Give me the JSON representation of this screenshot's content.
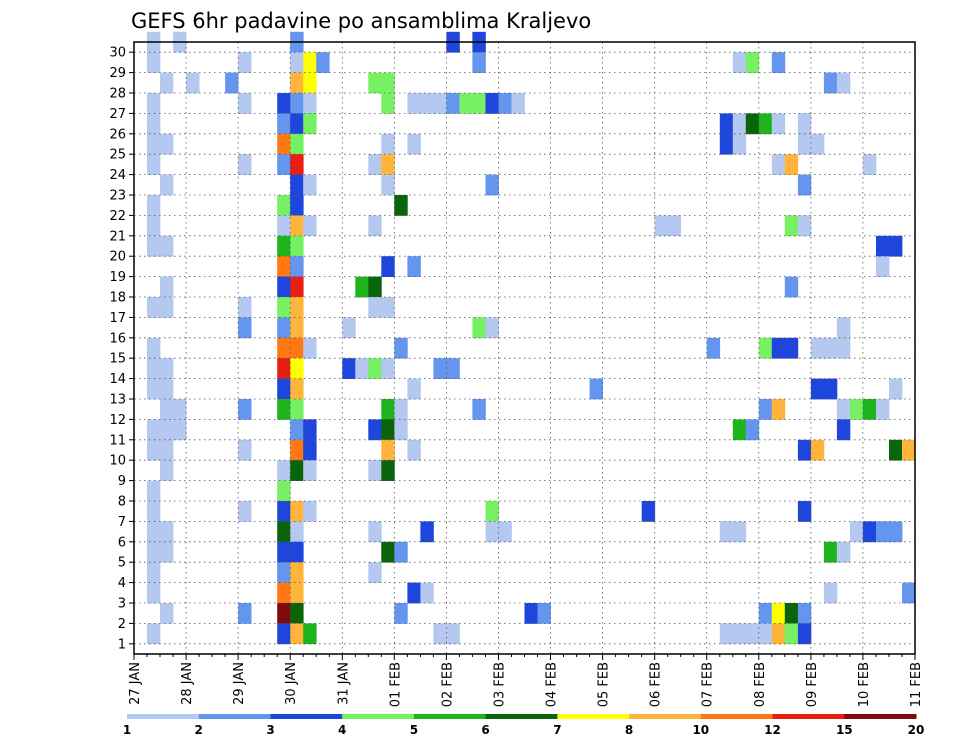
{
  "chart_data": {
    "type": "heatmap",
    "title": "GEFS 6hr padavine po ansamblima Kraljevo",
    "y_ticks": [
      "1",
      "2",
      "3",
      "4",
      "5",
      "6",
      "7",
      "8",
      "9",
      "10",
      "11",
      "12",
      "13",
      "14",
      "15",
      "16",
      "17",
      "18",
      "19",
      "20",
      "21",
      "22",
      "23",
      "24",
      "25",
      "26",
      "27",
      "28",
      "29",
      "30"
    ],
    "x_ticks": [
      "27 JAN",
      "28 JAN",
      "29 JAN",
      "30 JAN",
      "31 JAN",
      "01 FEB",
      "02 FEB",
      "03 FEB",
      "04 FEB",
      "05 FEB",
      "06 FEB",
      "07 FEB",
      "08 FEB",
      "09 FEB",
      "10 FEB",
      "11 FEB"
    ],
    "grid": true,
    "colorbar": {
      "labels": [
        "1",
        "2",
        "3",
        "4",
        "5",
        "6",
        "7",
        "8",
        "10",
        "12",
        "15",
        "20"
      ],
      "colors": [
        "#b4c8f0",
        "#6496f0",
        "#1e46dc",
        "#78f064",
        "#1eb41e",
        "#0a640a",
        "#ffff00",
        "#ffb43c",
        "#ff7814",
        "#e61e14",
        "#820a0a"
      ]
    },
    "notes": "x = ensemble member time in 6hr steps (4 per day) from 27 JAN; y = member 1-30; v = precipitation class index into colorbar.colors",
    "points": [
      {
        "x": 1,
        "y": 30,
        "v": 0
      },
      {
        "x": 3,
        "y": 30,
        "v": 0
      },
      {
        "x": 12,
        "y": 30,
        "v": 1
      },
      {
        "x": 24,
        "y": 30,
        "v": 2
      },
      {
        "x": 26,
        "y": 30,
        "v": 2
      },
      {
        "x": 1,
        "y": 29,
        "v": 0
      },
      {
        "x": 8,
        "y": 29,
        "v": 0
      },
      {
        "x": 12,
        "y": 29,
        "v": 0
      },
      {
        "x": 13,
        "y": 29,
        "v": 6
      },
      {
        "x": 14,
        "y": 29,
        "v": 1
      },
      {
        "x": 26,
        "y": 29,
        "v": 1
      },
      {
        "x": 46,
        "y": 29,
        "v": 0
      },
      {
        "x": 47,
        "y": 29,
        "v": 3
      },
      {
        "x": 49,
        "y": 29,
        "v": 1
      },
      {
        "x": 2,
        "y": 28,
        "v": 0
      },
      {
        "x": 4,
        "y": 28,
        "v": 0
      },
      {
        "x": 7,
        "y": 28,
        "v": 1
      },
      {
        "x": 12,
        "y": 28,
        "v": 7
      },
      {
        "x": 13,
        "y": 28,
        "v": 6
      },
      {
        "x": 18,
        "y": 28,
        "v": 3
      },
      {
        "x": 19,
        "y": 28,
        "v": 3
      },
      {
        "x": 53,
        "y": 28,
        "v": 1
      },
      {
        "x": 54,
        "y": 28,
        "v": 0
      },
      {
        "x": 1,
        "y": 27,
        "v": 0
      },
      {
        "x": 8,
        "y": 27,
        "v": 0
      },
      {
        "x": 11,
        "y": 27,
        "v": 2
      },
      {
        "x": 12,
        "y": 27,
        "v": 1
      },
      {
        "x": 13,
        "y": 27,
        "v": 0
      },
      {
        "x": 19,
        "y": 27,
        "v": 3
      },
      {
        "x": 21,
        "y": 27,
        "v": 0
      },
      {
        "x": 22,
        "y": 27,
        "v": 0
      },
      {
        "x": 23,
        "y": 27,
        "v": 0
      },
      {
        "x": 24,
        "y": 27,
        "v": 1
      },
      {
        "x": 25,
        "y": 27,
        "v": 3
      },
      {
        "x": 26,
        "y": 27,
        "v": 3
      },
      {
        "x": 27,
        "y": 27,
        "v": 2
      },
      {
        "x": 28,
        "y": 27,
        "v": 1
      },
      {
        "x": 29,
        "y": 27,
        "v": 0
      },
      {
        "x": 1,
        "y": 26,
        "v": 0
      },
      {
        "x": 11,
        "y": 26,
        "v": 1
      },
      {
        "x": 12,
        "y": 26,
        "v": 2
      },
      {
        "x": 13,
        "y": 26,
        "v": 3
      },
      {
        "x": 45,
        "y": 26,
        "v": 2
      },
      {
        "x": 46,
        "y": 26,
        "v": 0
      },
      {
        "x": 47,
        "y": 26,
        "v": 5
      },
      {
        "x": 48,
        "y": 26,
        "v": 4
      },
      {
        "x": 49,
        "y": 26,
        "v": 0
      },
      {
        "x": 51,
        "y": 26,
        "v": 0
      },
      {
        "x": 1,
        "y": 25,
        "v": 0
      },
      {
        "x": 2,
        "y": 25,
        "v": 0
      },
      {
        "x": 11,
        "y": 25,
        "v": 8
      },
      {
        "x": 12,
        "y": 25,
        "v": 3
      },
      {
        "x": 19,
        "y": 25,
        "v": 0
      },
      {
        "x": 21,
        "y": 25,
        "v": 0
      },
      {
        "x": 45,
        "y": 25,
        "v": 2
      },
      {
        "x": 46,
        "y": 25,
        "v": 0
      },
      {
        "x": 51,
        "y": 25,
        "v": 0
      },
      {
        "x": 52,
        "y": 25,
        "v": 0
      },
      {
        "x": 1,
        "y": 24,
        "v": 0
      },
      {
        "x": 8,
        "y": 24,
        "v": 0
      },
      {
        "x": 11,
        "y": 24,
        "v": 1
      },
      {
        "x": 12,
        "y": 24,
        "v": 9
      },
      {
        "x": 18,
        "y": 24,
        "v": 0
      },
      {
        "x": 19,
        "y": 24,
        "v": 7
      },
      {
        "x": 49,
        "y": 24,
        "v": 0
      },
      {
        "x": 50,
        "y": 24,
        "v": 7
      },
      {
        "x": 56,
        "y": 24,
        "v": 0
      },
      {
        "x": 2,
        "y": 23,
        "v": 0
      },
      {
        "x": 12,
        "y": 23,
        "v": 2
      },
      {
        "x": 13,
        "y": 23,
        "v": 0
      },
      {
        "x": 19,
        "y": 23,
        "v": 0
      },
      {
        "x": 27,
        "y": 23,
        "v": 1
      },
      {
        "x": 51,
        "y": 23,
        "v": 1
      },
      {
        "x": 1,
        "y": 22,
        "v": 0
      },
      {
        "x": 11,
        "y": 22,
        "v": 3
      },
      {
        "x": 12,
        "y": 22,
        "v": 2
      },
      {
        "x": 20,
        "y": 22,
        "v": 5
      },
      {
        "x": 1,
        "y": 21,
        "v": 0
      },
      {
        "x": 11,
        "y": 21,
        "v": 0
      },
      {
        "x": 12,
        "y": 21,
        "v": 7
      },
      {
        "x": 13,
        "y": 21,
        "v": 0
      },
      {
        "x": 18,
        "y": 21,
        "v": 0
      },
      {
        "x": 40,
        "y": 21,
        "v": 0
      },
      {
        "x": 41,
        "y": 21,
        "v": 0
      },
      {
        "x": 50,
        "y": 21,
        "v": 3
      },
      {
        "x": 51,
        "y": 21,
        "v": 0
      },
      {
        "x": 1,
        "y": 20,
        "v": 0
      },
      {
        "x": 2,
        "y": 20,
        "v": 0
      },
      {
        "x": 11,
        "y": 20,
        "v": 4
      },
      {
        "x": 12,
        "y": 20,
        "v": 3
      },
      {
        "x": 57,
        "y": 20,
        "v": 2
      },
      {
        "x": 58,
        "y": 20,
        "v": 2
      },
      {
        "x": 11,
        "y": 19,
        "v": 8
      },
      {
        "x": 12,
        "y": 19,
        "v": 1
      },
      {
        "x": 19,
        "y": 19,
        "v": 2
      },
      {
        "x": 21,
        "y": 19,
        "v": 1
      },
      {
        "x": 57,
        "y": 19,
        "v": 0
      },
      {
        "x": 2,
        "y": 18,
        "v": 0
      },
      {
        "x": 11,
        "y": 18,
        "v": 2
      },
      {
        "x": 12,
        "y": 18,
        "v": 9
      },
      {
        "x": 17,
        "y": 18,
        "v": 4
      },
      {
        "x": 18,
        "y": 18,
        "v": 5
      },
      {
        "x": 50,
        "y": 18,
        "v": 1
      },
      {
        "x": 1,
        "y": 17,
        "v": 0
      },
      {
        "x": 2,
        "y": 17,
        "v": 0
      },
      {
        "x": 8,
        "y": 17,
        "v": 0
      },
      {
        "x": 11,
        "y": 17,
        "v": 3
      },
      {
        "x": 12,
        "y": 17,
        "v": 7
      },
      {
        "x": 18,
        "y": 17,
        "v": 0
      },
      {
        "x": 19,
        "y": 17,
        "v": 0
      },
      {
        "x": 8,
        "y": 16,
        "v": 1
      },
      {
        "x": 11,
        "y": 16,
        "v": 1
      },
      {
        "x": 12,
        "y": 16,
        "v": 7
      },
      {
        "x": 16,
        "y": 16,
        "v": 0
      },
      {
        "x": 26,
        "y": 16,
        "v": 3
      },
      {
        "x": 27,
        "y": 16,
        "v": 0
      },
      {
        "x": 54,
        "y": 16,
        "v": 0
      },
      {
        "x": 1,
        "y": 15,
        "v": 0
      },
      {
        "x": 11,
        "y": 15,
        "v": 8
      },
      {
        "x": 12,
        "y": 15,
        "v": 8
      },
      {
        "x": 13,
        "y": 15,
        "v": 0
      },
      {
        "x": 20,
        "y": 15,
        "v": 1
      },
      {
        "x": 44,
        "y": 15,
        "v": 1
      },
      {
        "x": 48,
        "y": 15,
        "v": 3
      },
      {
        "x": 49,
        "y": 15,
        "v": 2
      },
      {
        "x": 50,
        "y": 15,
        "v": 2
      },
      {
        "x": 52,
        "y": 15,
        "v": 0
      },
      {
        "x": 53,
        "y": 15,
        "v": 0
      },
      {
        "x": 54,
        "y": 15,
        "v": 0
      },
      {
        "x": 1,
        "y": 14,
        "v": 0
      },
      {
        "x": 2,
        "y": 14,
        "v": 0
      },
      {
        "x": 11,
        "y": 14,
        "v": 9
      },
      {
        "x": 12,
        "y": 14,
        "v": 6
      },
      {
        "x": 16,
        "y": 14,
        "v": 2
      },
      {
        "x": 17,
        "y": 14,
        "v": 0
      },
      {
        "x": 18,
        "y": 14,
        "v": 3
      },
      {
        "x": 19,
        "y": 14,
        "v": 0
      },
      {
        "x": 23,
        "y": 14,
        "v": 1
      },
      {
        "x": 24,
        "y": 14,
        "v": 1
      },
      {
        "x": 1,
        "y": 13,
        "v": 0
      },
      {
        "x": 2,
        "y": 13,
        "v": 0
      },
      {
        "x": 11,
        "y": 13,
        "v": 2
      },
      {
        "x": 12,
        "y": 13,
        "v": 7
      },
      {
        "x": 21,
        "y": 13,
        "v": 0
      },
      {
        "x": 35,
        "y": 13,
        "v": 1
      },
      {
        "x": 52,
        "y": 13,
        "v": 2
      },
      {
        "x": 53,
        "y": 13,
        "v": 2
      },
      {
        "x": 58,
        "y": 13,
        "v": 0
      },
      {
        "x": 2,
        "y": 12,
        "v": 0
      },
      {
        "x": 3,
        "y": 12,
        "v": 0
      },
      {
        "x": 8,
        "y": 12,
        "v": 1
      },
      {
        "x": 11,
        "y": 12,
        "v": 4
      },
      {
        "x": 12,
        "y": 12,
        "v": 3
      },
      {
        "x": 19,
        "y": 12,
        "v": 4
      },
      {
        "x": 20,
        "y": 12,
        "v": 0
      },
      {
        "x": 26,
        "y": 12,
        "v": 1
      },
      {
        "x": 48,
        "y": 12,
        "v": 1
      },
      {
        "x": 49,
        "y": 12,
        "v": 7
      },
      {
        "x": 54,
        "y": 12,
        "v": 0
      },
      {
        "x": 55,
        "y": 12,
        "v": 3
      },
      {
        "x": 56,
        "y": 12,
        "v": 4
      },
      {
        "x": 57,
        "y": 12,
        "v": 0
      },
      {
        "x": 1,
        "y": 11,
        "v": 0
      },
      {
        "x": 2,
        "y": 11,
        "v": 0
      },
      {
        "x": 3,
        "y": 11,
        "v": 0
      },
      {
        "x": 12,
        "y": 11,
        "v": 1
      },
      {
        "x": 13,
        "y": 11,
        "v": 2
      },
      {
        "x": 18,
        "y": 11,
        "v": 2
      },
      {
        "x": 19,
        "y": 11,
        "v": 5
      },
      {
        "x": 20,
        "y": 11,
        "v": 0
      },
      {
        "x": 46,
        "y": 11,
        "v": 4
      },
      {
        "x": 47,
        "y": 11,
        "v": 1
      },
      {
        "x": 54,
        "y": 11,
        "v": 2
      },
      {
        "x": 1,
        "y": 10,
        "v": 0
      },
      {
        "x": 2,
        "y": 10,
        "v": 0
      },
      {
        "x": 8,
        "y": 10,
        "v": 0
      },
      {
        "x": 12,
        "y": 10,
        "v": 8
      },
      {
        "x": 13,
        "y": 10,
        "v": 2
      },
      {
        "x": 19,
        "y": 10,
        "v": 7
      },
      {
        "x": 21,
        "y": 10,
        "v": 0
      },
      {
        "x": 51,
        "y": 10,
        "v": 2
      },
      {
        "x": 52,
        "y": 10,
        "v": 7
      },
      {
        "x": 58,
        "y": 10,
        "v": 5
      },
      {
        "x": 59,
        "y": 10,
        "v": 7
      },
      {
        "x": 2,
        "y": 9,
        "v": 0
      },
      {
        "x": 11,
        "y": 9,
        "v": 0
      },
      {
        "x": 12,
        "y": 9,
        "v": 5
      },
      {
        "x": 13,
        "y": 9,
        "v": 0
      },
      {
        "x": 18,
        "y": 9,
        "v": 0
      },
      {
        "x": 19,
        "y": 9,
        "v": 5
      },
      {
        "x": 1,
        "y": 8,
        "v": 0
      },
      {
        "x": 11,
        "y": 8,
        "v": 3
      },
      {
        "x": 1,
        "y": 7,
        "v": 0
      },
      {
        "x": 8,
        "y": 7,
        "v": 0
      },
      {
        "x": 11,
        "y": 7,
        "v": 2
      },
      {
        "x": 12,
        "y": 7,
        "v": 7
      },
      {
        "x": 13,
        "y": 7,
        "v": 0
      },
      {
        "x": 27,
        "y": 7,
        "v": 3
      },
      {
        "x": 39,
        "y": 7,
        "v": 2
      },
      {
        "x": 51,
        "y": 7,
        "v": 2
      },
      {
        "x": 1,
        "y": 6,
        "v": 0
      },
      {
        "x": 2,
        "y": 6,
        "v": 0
      },
      {
        "x": 11,
        "y": 6,
        "v": 5
      },
      {
        "x": 12,
        "y": 6,
        "v": 0
      },
      {
        "x": 18,
        "y": 6,
        "v": 0
      },
      {
        "x": 22,
        "y": 6,
        "v": 2
      },
      {
        "x": 27,
        "y": 6,
        "v": 0
      },
      {
        "x": 28,
        "y": 6,
        "v": 0
      },
      {
        "x": 45,
        "y": 6,
        "v": 0
      },
      {
        "x": 46,
        "y": 6,
        "v": 0
      },
      {
        "x": 55,
        "y": 6,
        "v": 0
      },
      {
        "x": 56,
        "y": 6,
        "v": 2
      },
      {
        "x": 57,
        "y": 6,
        "v": 1
      },
      {
        "x": 58,
        "y": 6,
        "v": 1
      },
      {
        "x": 1,
        "y": 5,
        "v": 0
      },
      {
        "x": 2,
        "y": 5,
        "v": 0
      },
      {
        "x": 11,
        "y": 5,
        "v": 2
      },
      {
        "x": 12,
        "y": 5,
        "v": 2
      },
      {
        "x": 19,
        "y": 5,
        "v": 5
      },
      {
        "x": 20,
        "y": 5,
        "v": 1
      },
      {
        "x": 53,
        "y": 5,
        "v": 4
      },
      {
        "x": 54,
        "y": 5,
        "v": 0
      },
      {
        "x": 1,
        "y": 4,
        "v": 0
      },
      {
        "x": 11,
        "y": 4,
        "v": 1
      },
      {
        "x": 12,
        "y": 4,
        "v": 7
      },
      {
        "x": 18,
        "y": 4,
        "v": 0
      },
      {
        "x": 1,
        "y": 3,
        "v": 0
      },
      {
        "x": 11,
        "y": 3,
        "v": 8
      },
      {
        "x": 12,
        "y": 3,
        "v": 7
      },
      {
        "x": 21,
        "y": 3,
        "v": 2
      },
      {
        "x": 22,
        "y": 3,
        "v": 0
      },
      {
        "x": 53,
        "y": 3,
        "v": 0
      },
      {
        "x": 59,
        "y": 3,
        "v": 1
      },
      {
        "x": 2,
        "y": 2,
        "v": 0
      },
      {
        "x": 8,
        "y": 2,
        "v": 1
      },
      {
        "x": 11,
        "y": 2,
        "v": 10
      },
      {
        "x": 12,
        "y": 2,
        "v": 5
      },
      {
        "x": 20,
        "y": 2,
        "v": 1
      },
      {
        "x": 30,
        "y": 2,
        "v": 2
      },
      {
        "x": 31,
        "y": 2,
        "v": 1
      },
      {
        "x": 48,
        "y": 2,
        "v": 1
      },
      {
        "x": 49,
        "y": 2,
        "v": 6
      },
      {
        "x": 50,
        "y": 2,
        "v": 5
      },
      {
        "x": 51,
        "y": 2,
        "v": 1
      },
      {
        "x": 1,
        "y": 1,
        "v": 0
      },
      {
        "x": 11,
        "y": 1,
        "v": 2
      },
      {
        "x": 12,
        "y": 1,
        "v": 7
      },
      {
        "x": 13,
        "y": 1,
        "v": 4
      },
      {
        "x": 23,
        "y": 1,
        "v": 0
      },
      {
        "x": 24,
        "y": 1,
        "v": 0
      },
      {
        "x": 45,
        "y": 1,
        "v": 0
      },
      {
        "x": 46,
        "y": 1,
        "v": 0
      },
      {
        "x": 47,
        "y": 1,
        "v": 0
      },
      {
        "x": 48,
        "y": 1,
        "v": 0
      },
      {
        "x": 49,
        "y": 1,
        "v": 7
      },
      {
        "x": 50,
        "y": 1,
        "v": 3
      },
      {
        "x": 51,
        "y": 1,
        "v": 2
      }
    ]
  }
}
